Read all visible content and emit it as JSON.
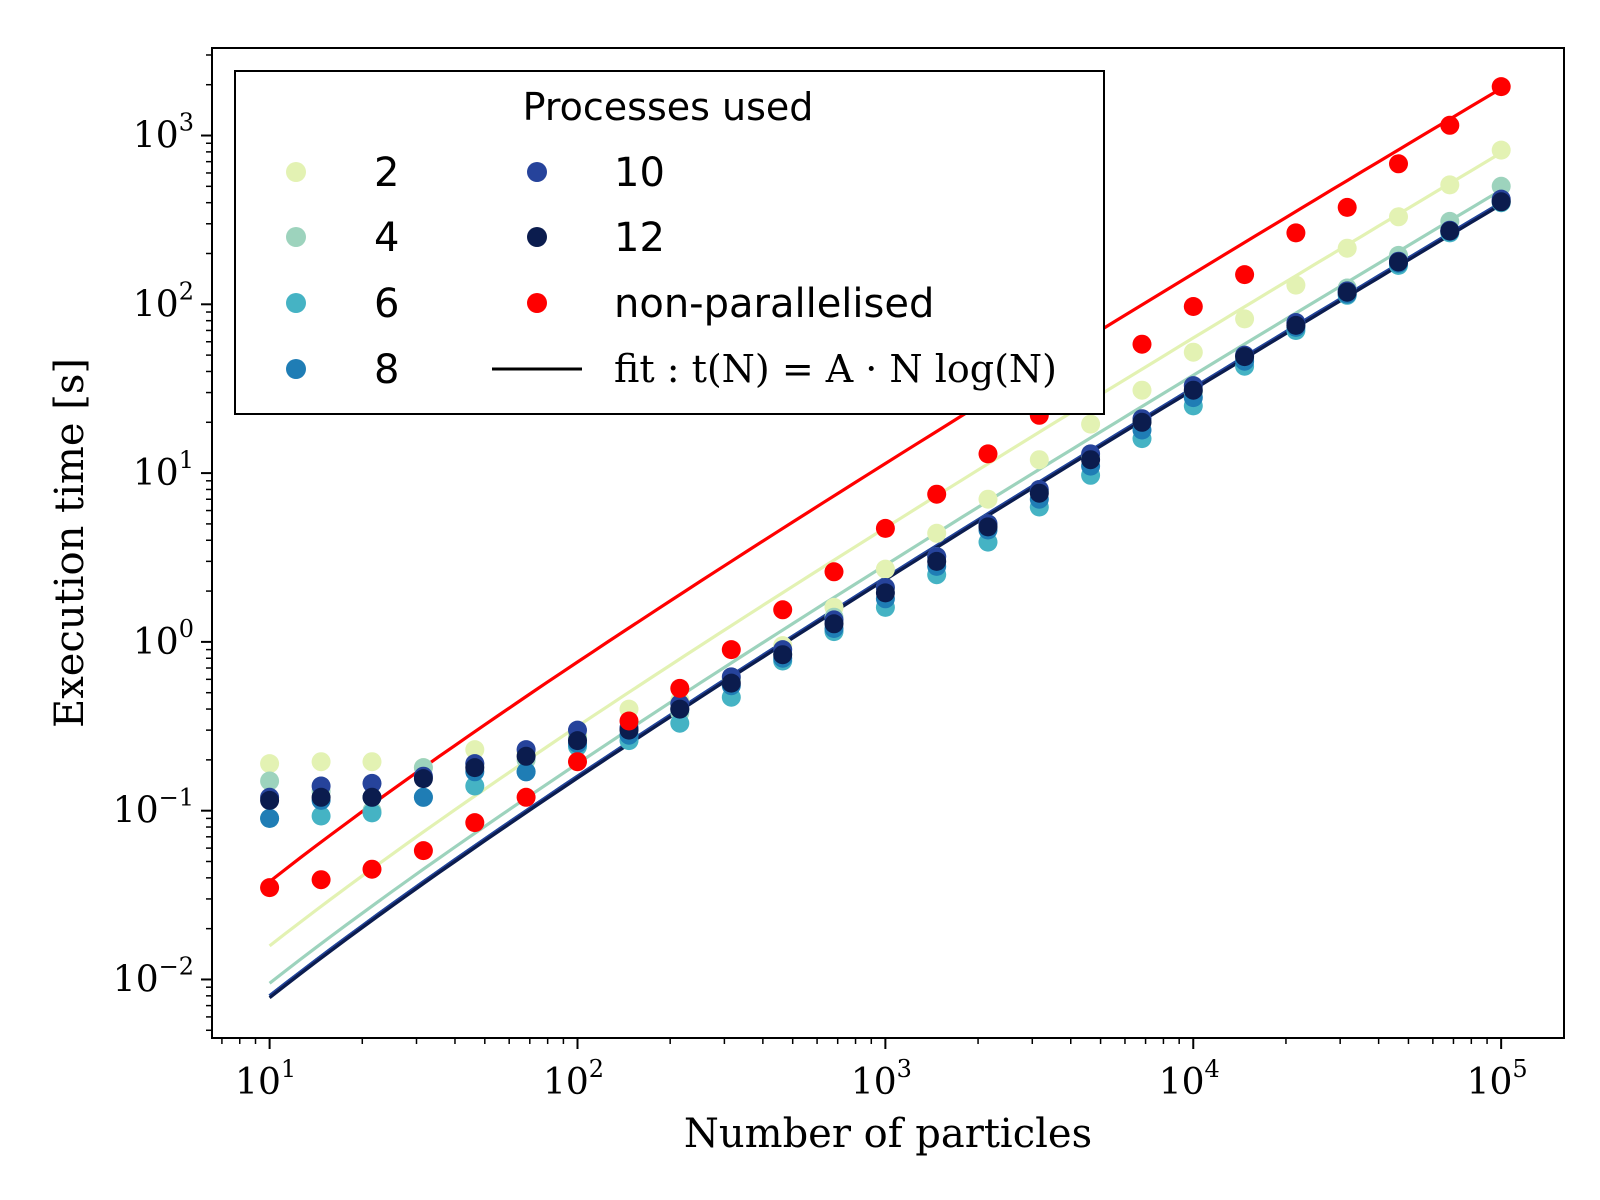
{
  "chart_data": {
    "type": "scatter",
    "xlabel": "Number of particles",
    "ylabel": "Execution time [s]",
    "xscale": "log",
    "yscale": "log",
    "xlim": [
      6.5,
      160000
    ],
    "ylim": [
      0.0045,
      3300
    ],
    "xticks": [
      {
        "value": 10,
        "base": "10",
        "exp": "1"
      },
      {
        "value": 100,
        "base": "10",
        "exp": "2"
      },
      {
        "value": 1000,
        "base": "10",
        "exp": "3"
      },
      {
        "value": 10000,
        "base": "10",
        "exp": "4"
      },
      {
        "value": 100000,
        "base": "10",
        "exp": "5"
      }
    ],
    "yticks": [
      {
        "value": 0.01,
        "base": "10",
        "exp": "−2"
      },
      {
        "value": 0.1,
        "base": "10",
        "exp": "−1"
      },
      {
        "value": 1,
        "base": "10",
        "exp": "0"
      },
      {
        "value": 10,
        "base": "10",
        "exp": "1"
      },
      {
        "value": 100,
        "base": "10",
        "exp": "2"
      },
      {
        "value": 1000,
        "base": "10",
        "exp": "3"
      }
    ],
    "grid": false,
    "legend": {
      "title": "Processes used",
      "placement": "top-left",
      "fit_label": "fit : t(N) = A · N log(N)"
    },
    "x": [
      10,
      14.7,
      21.5,
      31.6,
      46.4,
      68.1,
      100,
      147,
      215,
      316,
      464,
      681,
      1000,
      1468,
      2154,
      3162,
      4642,
      6813,
      10000,
      14678,
      21544,
      31623,
      46416,
      68129,
      100000
    ],
    "series": [
      {
        "name": "2",
        "color": "#e3f2b3",
        "fit_A": 0.00158,
        "values": [
          0.19,
          0.195,
          0.195,
          0.18,
          0.23,
          0.22,
          0.28,
          0.4,
          0.45,
          0.6,
          0.95,
          1.6,
          2.7,
          4.4,
          7.0,
          12.0,
          19.5,
          31.0,
          52.0,
          82.0,
          130,
          215,
          330,
          510,
          820
        ]
      },
      {
        "name": "4",
        "color": "#9dd3bd",
        "fit_A": 0.00095,
        "values": [
          0.15,
          0.13,
          0.1,
          0.18,
          0.19,
          0.2,
          0.27,
          0.28,
          0.38,
          0.6,
          0.85,
          1.4,
          2.1,
          3.2,
          5.0,
          7.8,
          12.5,
          20.0,
          30.0,
          48.0,
          77,
          125,
          195,
          310,
          500
        ]
      },
      {
        "name": "6",
        "color": "#45b3c4",
        "fit_A": 0.0008,
        "values": [
          0.09,
          0.093,
          0.097,
          0.12,
          0.14,
          0.17,
          0.24,
          0.26,
          0.33,
          0.47,
          0.77,
          1.15,
          1.6,
          2.5,
          3.9,
          6.3,
          9.7,
          16.0,
          25.0,
          43.0,
          70,
          113,
          170,
          265,
          400
        ]
      },
      {
        "name": "8",
        "color": "#1f7db5",
        "fit_A": 0.0008,
        "values": [
          0.09,
          0.115,
          0.12,
          0.12,
          0.17,
          0.17,
          0.25,
          0.28,
          0.4,
          0.55,
          0.8,
          1.2,
          1.8,
          2.8,
          4.6,
          7.0,
          11.0,
          18.0,
          28.0,
          46.0,
          73,
          115,
          175,
          270,
          410
        ]
      },
      {
        "name": "10",
        "color": "#26439b",
        "fit_A": 0.0008,
        "values": [
          0.12,
          0.14,
          0.145,
          0.16,
          0.19,
          0.23,
          0.3,
          0.31,
          0.43,
          0.62,
          0.9,
          1.35,
          2.1,
          3.2,
          5.0,
          8.0,
          13.0,
          21.0,
          33.0,
          50.0,
          78,
          120,
          180,
          275,
          420
        ]
      },
      {
        "name": "12",
        "color": "#0b1c4e",
        "fit_A": 0.00078,
        "values": [
          0.115,
          0.12,
          0.12,
          0.155,
          0.18,
          0.21,
          0.26,
          0.3,
          0.4,
          0.57,
          0.84,
          1.28,
          1.95,
          3.0,
          4.8,
          7.6,
          12.0,
          20.0,
          31.0,
          49.0,
          75,
          118,
          178,
          272,
          405
        ]
      },
      {
        "name": "non-parallelised",
        "color": "#ff0000",
        "fit_A": 0.0038,
        "values": [
          0.035,
          0.039,
          0.045,
          0.058,
          0.085,
          0.12,
          0.195,
          0.34,
          0.53,
          0.9,
          1.55,
          2.6,
          4.7,
          7.5,
          13.0,
          22.0,
          37.0,
          58.0,
          97.0,
          150,
          265,
          375,
          680,
          1150,
          1950
        ]
      }
    ]
  }
}
